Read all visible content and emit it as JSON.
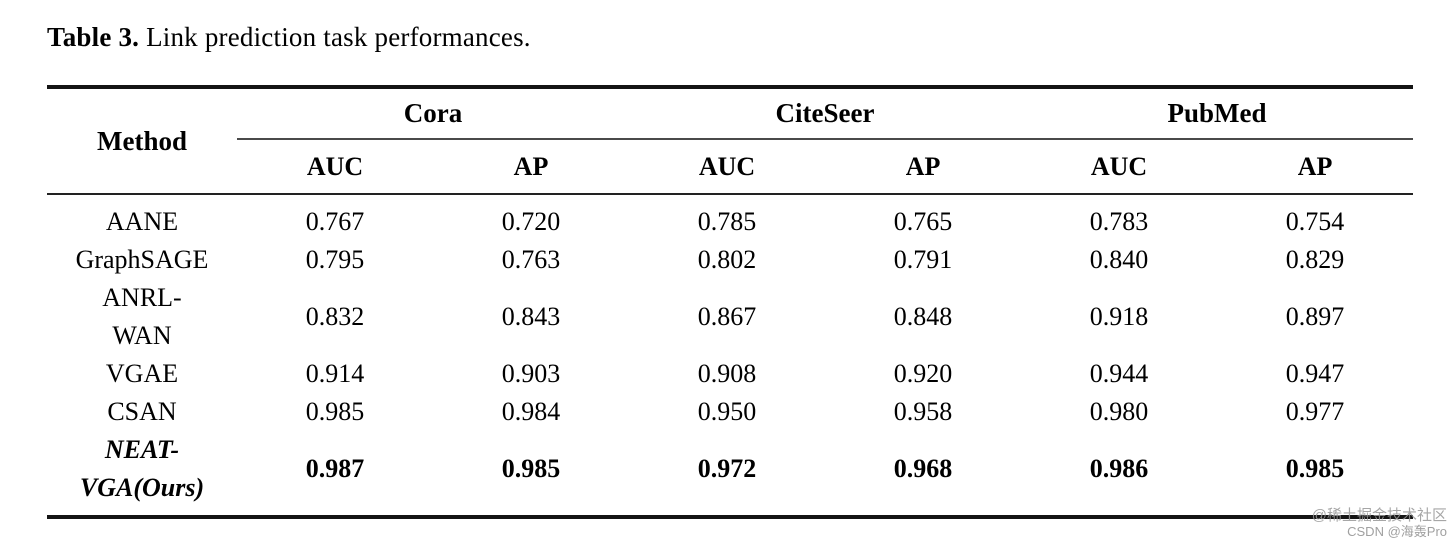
{
  "caption": {
    "label": "Table 3.",
    "text": " Link prediction task performances."
  },
  "table": {
    "method_header": "Method",
    "groups": [
      {
        "name": "Cora"
      },
      {
        "name": "CiteSeer"
      },
      {
        "name": "PubMed"
      }
    ],
    "subheaders": [
      "AUC",
      "AP",
      "AUC",
      "AP",
      "AUC",
      "AP"
    ],
    "rows": [
      {
        "method": "AANE",
        "values": [
          "0.767",
          "0.720",
          "0.785",
          "0.765",
          "0.783",
          "0.754"
        ]
      },
      {
        "method": "GraphSAGE",
        "values": [
          "0.795",
          "0.763",
          "0.802",
          "0.791",
          "0.840",
          "0.829"
        ]
      },
      {
        "method": "ANRL-\nWAN",
        "values": [
          "0.832",
          "0.843",
          "0.867",
          "0.848",
          "0.918",
          "0.897"
        ]
      },
      {
        "method": "VGAE",
        "values": [
          "0.914",
          "0.903",
          "0.908",
          "0.920",
          "0.944",
          "0.947"
        ]
      },
      {
        "method": "CSAN",
        "values": [
          "0.985",
          "0.984",
          "0.950",
          "0.958",
          "0.980",
          "0.977"
        ]
      },
      {
        "method": "NEAT-\nVGA(Ours)",
        "values": [
          "0.987",
          "0.985",
          "0.972",
          "0.968",
          "0.986",
          "0.985"
        ]
      }
    ]
  },
  "watermark": {
    "line1": "@稀土掘金技术社区",
    "line2": "CSDN @海轰Pro"
  },
  "colors": {
    "text": "#000000",
    "rule_heavy": "#141414",
    "rule_light": "#222222",
    "watermark_gray": "#969696",
    "background": "#ffffff"
  }
}
